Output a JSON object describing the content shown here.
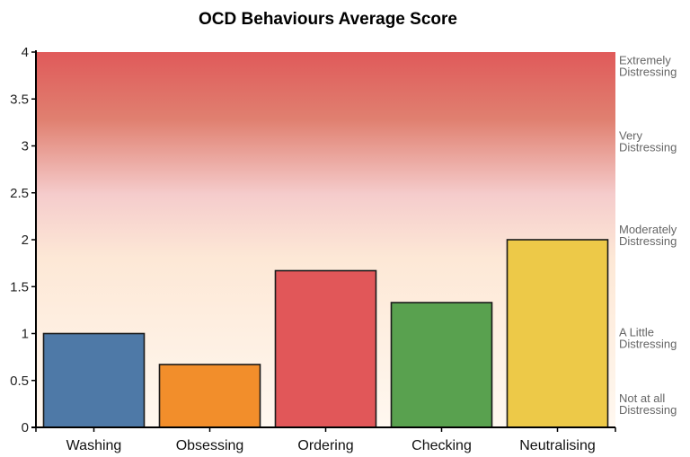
{
  "chart_data": {
    "type": "bar",
    "title": "OCD Behaviours Average Score",
    "xlabel": "",
    "ylabel": "",
    "categories": [
      "Washing",
      "Obsessing",
      "Ordering",
      "Checking",
      "Neutralising"
    ],
    "values": [
      1.0,
      0.67,
      1.67,
      1.33,
      2.0
    ],
    "colors": [
      "#4e79a7",
      "#f28e2b",
      "#e15759",
      "#59a14f",
      "#edc948"
    ],
    "ylim": [
      0,
      4
    ],
    "yticks": [
      "0",
      "0.5",
      "1",
      "1.5",
      "2",
      "2.5",
      "3",
      "3.5",
      "4"
    ],
    "grid": false,
    "legend": "none",
    "background_gradient": [
      "#fff8f0",
      "#f5cccc",
      "#e05a5a"
    ],
    "band_labels": [
      {
        "line1": "Extremely",
        "line2": "Distressing",
        "value": 3.85
      },
      {
        "line1": "Very",
        "line2": "Distressing",
        "value": 3.05
      },
      {
        "line1": "Moderately",
        "line2": "Distressing",
        "value": 2.05
      },
      {
        "line1": "A Little",
        "line2": "Distressing",
        "value": 0.95
      },
      {
        "line1": "Not at all",
        "line2": "Distressing",
        "value": 0.25
      }
    ]
  }
}
